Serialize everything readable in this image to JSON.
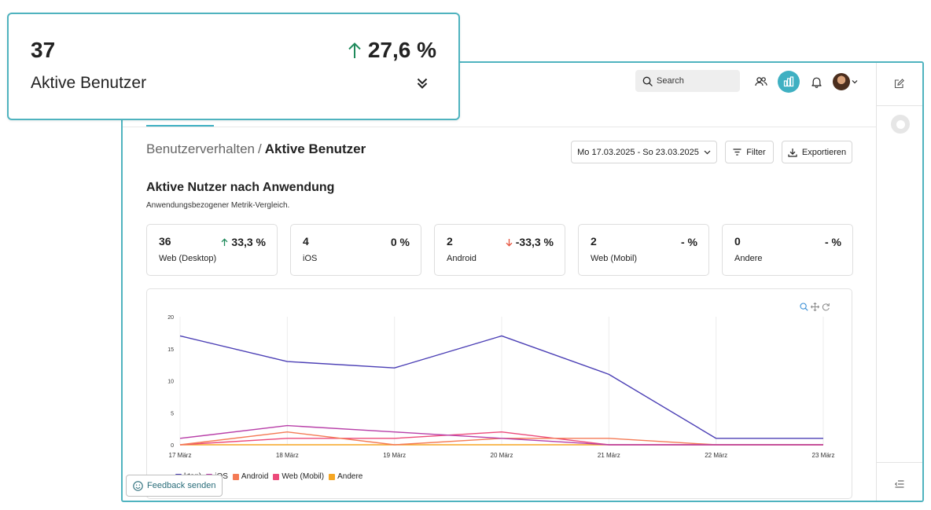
{
  "header": {
    "search_label": "Search",
    "accent_color": "#3fb0c2"
  },
  "breadcrumb": {
    "parent": "Benutzerverhalten",
    "separator": "/",
    "current": "Aktive Benutzer"
  },
  "toolbar": {
    "date_range": "Mo 17.03.2025 - So 23.03.2025",
    "filter_label": "Filter",
    "export_label": "Exportieren"
  },
  "section": {
    "title": "Aktive Nutzer nach Anwendung",
    "subtitle": "Anwendungsbezogener Metrik-Vergleich."
  },
  "cards": [
    {
      "value": "36",
      "change": "33,3 %",
      "trend": "up",
      "label": "Web (Desktop)"
    },
    {
      "value": "4",
      "change": "0 %",
      "trend": "none",
      "label": "iOS"
    },
    {
      "value": "2",
      "change": "-33,3 %",
      "trend": "down",
      "label": "Android"
    },
    {
      "value": "2",
      "change": "- %",
      "trend": "none",
      "label": "Web (Mobil)"
    },
    {
      "value": "0",
      "change": "- %",
      "trend": "none",
      "label": "Andere"
    }
  ],
  "overlay_card": {
    "value": "37",
    "change": "27,6 %",
    "trend": "up",
    "label": "Aktive Benutzer"
  },
  "feedback_label": "Feedback senden",
  "chart_data": {
    "type": "line",
    "title": "",
    "xlabel": "",
    "ylabel": "",
    "ylim": [
      0,
      20
    ],
    "yticks": [
      0,
      5,
      10,
      15,
      20
    ],
    "categories": [
      "17 März",
      "18 März",
      "19 März",
      "20 März",
      "21 März",
      "22 März",
      "23 März"
    ],
    "series": [
      {
        "name": "Web (Desktop)",
        "color": "#4b3fb5",
        "values": [
          17,
          13,
          12,
          17,
          11,
          1,
          1
        ]
      },
      {
        "name": "iOS",
        "color": "#b83fa8",
        "values": [
          1,
          3,
          2,
          1,
          0,
          0,
          0
        ]
      },
      {
        "name": "Android",
        "color": "#f47a55",
        "values": [
          0,
          2,
          0,
          1,
          1,
          0,
          0
        ]
      },
      {
        "name": "Web (Mobil)",
        "color": "#ec4a7a",
        "values": [
          0,
          1,
          1,
          2,
          0,
          0,
          0
        ]
      },
      {
        "name": "Andere",
        "color": "#f5a623",
        "values": [
          0,
          0,
          0,
          0,
          0,
          0,
          0
        ]
      }
    ],
    "legend_visible_text": [
      "ktop)",
      "iOS",
      "Android",
      "Web (Mobil)",
      "Andere"
    ],
    "colors": {
      "up": "#1f8a5b",
      "down": "#e5533d"
    }
  }
}
